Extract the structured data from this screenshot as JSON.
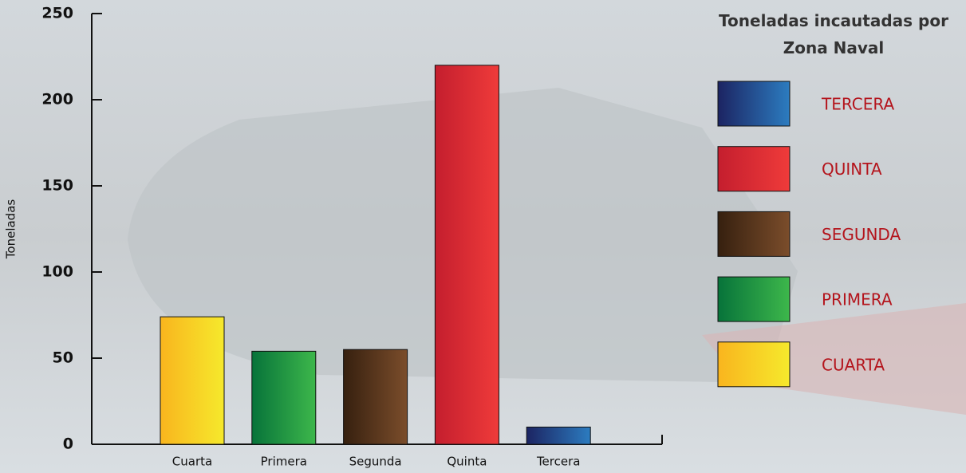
{
  "chart_data": {
    "type": "bar",
    "y_label": "Toneladas",
    "categories": [
      "Cuarta",
      "Primera",
      "Segunda",
      "Quinta",
      "Tercera"
    ],
    "values": [
      74,
      54,
      55,
      220,
      10
    ],
    "colors": [
      [
        "#f9b51e",
        "#f6e92c"
      ],
      [
        "#07733a",
        "#3db74b"
      ],
      [
        "#36200f",
        "#7b4d2b"
      ],
      [
        "#c41e2e",
        "#ef3b3a"
      ],
      [
        "#1c2462",
        "#2c7cc0"
      ]
    ],
    "ylim": [
      0,
      250
    ],
    "yticks": [
      0,
      50,
      100,
      150,
      200,
      250
    ],
    "legend_title": "Toneladas incautadas por Zona Naval",
    "legend": [
      {
        "label": "TERCERA",
        "color": [
          "#1c2462",
          "#2c7cc0"
        ]
      },
      {
        "label": "QUINTA",
        "color": [
          "#c41e2e",
          "#ef3b3a"
        ]
      },
      {
        "label": "SEGUNDA",
        "color": [
          "#36200f",
          "#7b4d2b"
        ]
      },
      {
        "label": "PRIMERA",
        "color": [
          "#07733a",
          "#3db74b"
        ]
      },
      {
        "label": "CUARTA",
        "color": [
          "#f9b51e",
          "#f6e92c"
        ]
      }
    ]
  }
}
